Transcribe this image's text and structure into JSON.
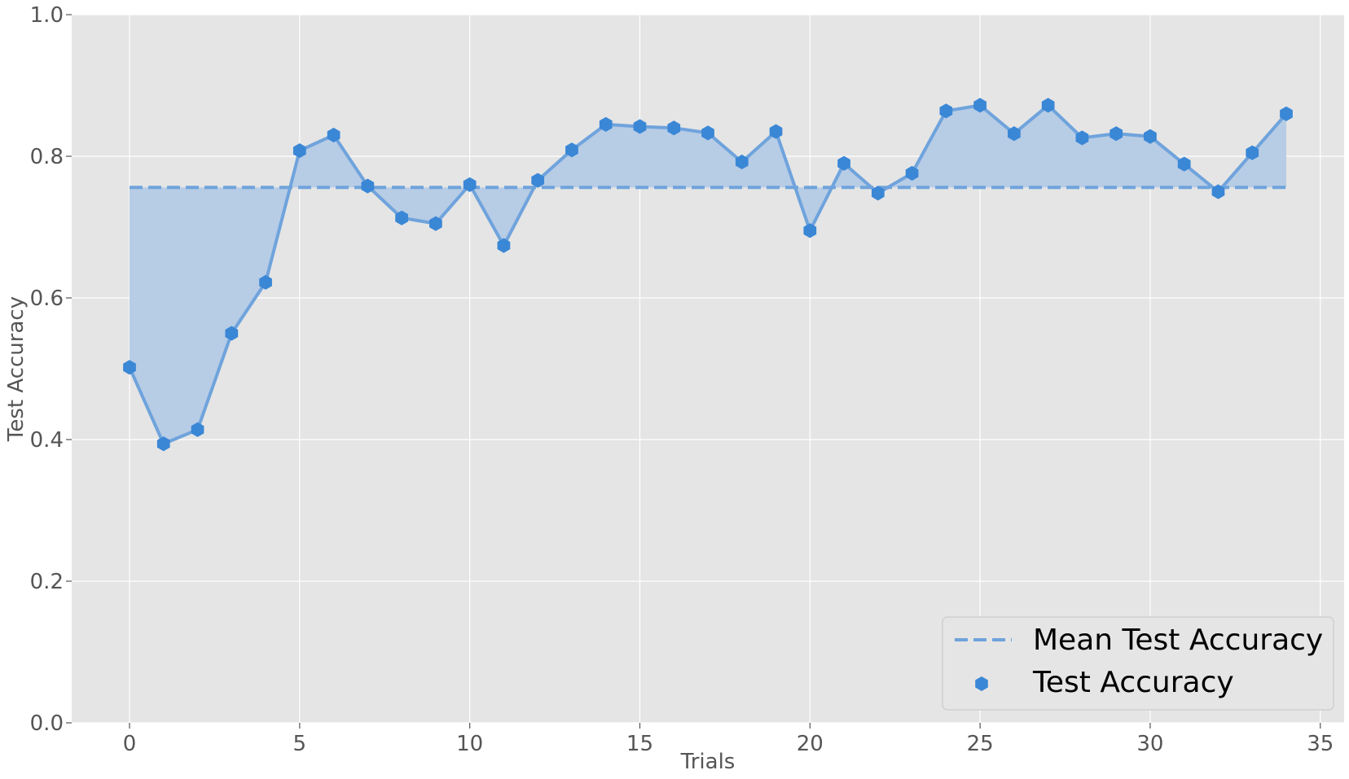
{
  "chart_data": {
    "type": "line",
    "title": "",
    "xlabel": "Trials",
    "ylabel": "Test Accuracy",
    "xlim": [
      -1.7,
      35.7
    ],
    "ylim": [
      0.0,
      1.0
    ],
    "x_ticks": [
      0,
      5,
      10,
      15,
      20,
      25,
      30,
      35
    ],
    "y_ticks": [
      0.0,
      0.2,
      0.4,
      0.6,
      0.8,
      1.0
    ],
    "x_tick_labels": [
      "0",
      "5",
      "10",
      "15",
      "20",
      "25",
      "30",
      "35"
    ],
    "y_tick_labels": [
      "0.0",
      "0.2",
      "0.4",
      "0.6",
      "0.8",
      "1.0"
    ],
    "grid": true,
    "legend_position": "lower-right",
    "x": [
      0,
      1,
      2,
      3,
      4,
      5,
      6,
      7,
      8,
      9,
      10,
      11,
      12,
      13,
      14,
      15,
      16,
      17,
      18,
      19,
      20,
      21,
      22,
      23,
      24,
      25,
      26,
      27,
      28,
      29,
      30,
      31,
      32,
      33,
      34
    ],
    "series": [
      {
        "name": "Mean Test Accuracy",
        "kind": "dashed-line",
        "color": "#6fa3dc",
        "x": [
          0,
          34
        ],
        "values": [
          0.756,
          0.756
        ]
      },
      {
        "name": "Test Accuracy",
        "kind": "line-markers",
        "marker": "hexagon",
        "color": "#3a87d6",
        "line_color": "#6fa3dc",
        "values": [
          0.502,
          0.394,
          0.414,
          0.55,
          0.622,
          0.808,
          0.83,
          0.758,
          0.713,
          0.705,
          0.76,
          0.674,
          0.766,
          0.809,
          0.845,
          0.842,
          0.84,
          0.833,
          0.792,
          0.835,
          0.695,
          0.79,
          0.748,
          0.776,
          0.864,
          0.872,
          0.832,
          0.872,
          0.826,
          0.832,
          0.828,
          0.789,
          0.75,
          0.805,
          0.86
        ]
      }
    ],
    "fill_between": {
      "from_series": "Test Accuracy",
      "to_series": "Mean Test Accuracy",
      "color": "#b7cce5"
    },
    "colors": {
      "plot_background": "#e5e5e5",
      "grid": "#ffffff",
      "tick_text": "#555555",
      "legend_background": "#e5e5e5",
      "legend_border": "#d0d0d0",
      "legend_text": "#000000"
    }
  }
}
